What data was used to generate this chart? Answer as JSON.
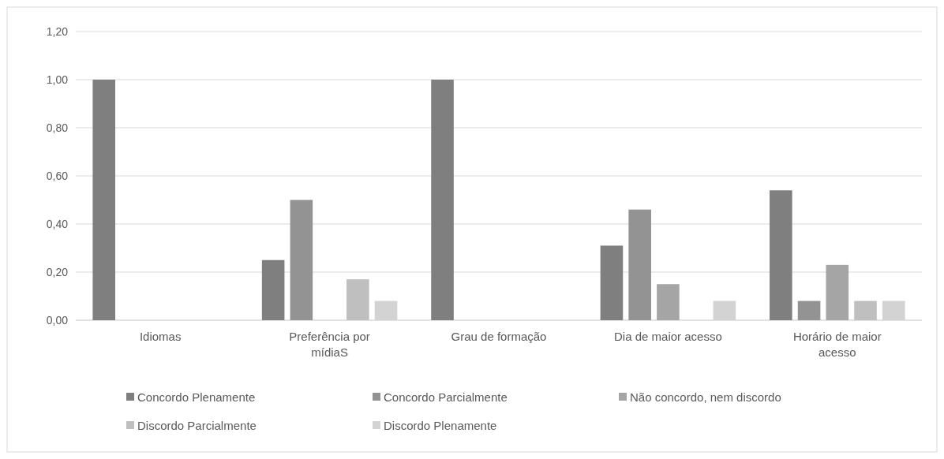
{
  "chart_data": {
    "type": "bar",
    "categories": [
      "Idiomas",
      "Preferência por mídiaS",
      "Grau de formação",
      "Dia de maior acesso",
      "Horário de maior acesso"
    ],
    "series": [
      {
        "name": "Concordo Plenamente",
        "color": "#7f7f7f",
        "values": [
          1.0,
          0.25,
          1.0,
          0.31,
          0.54
        ]
      },
      {
        "name": "Concordo Parcialmente",
        "color": "#939393",
        "values": [
          0,
          0.5,
          0,
          0.46,
          0.08
        ]
      },
      {
        "name": "Não concordo, nem discordo",
        "color": "#a5a5a5",
        "values": [
          0,
          0,
          0,
          0.15,
          0.23
        ]
      },
      {
        "name": "Discordo Parcialmente",
        "color": "#bfbfbf",
        "values": [
          0,
          0.17,
          0,
          0,
          0.08
        ]
      },
      {
        "name": "Discordo Plenamente",
        "color": "#d3d3d3",
        "values": [
          0,
          0.08,
          0,
          0.08,
          0.08
        ]
      }
    ],
    "ylim": [
      0,
      1.2
    ],
    "yticks": [
      {
        "value": 0,
        "label": "0,00"
      },
      {
        "value": 0.2,
        "label": "0,20"
      },
      {
        "value": 0.4,
        "label": "0,40"
      },
      {
        "value": 0.6,
        "label": "0,60"
      },
      {
        "value": 0.8,
        "label": "0,80"
      },
      {
        "value": 1.0,
        "label": "1,00"
      },
      {
        "value": 1.2,
        "label": "1,20"
      }
    ],
    "grid": "y",
    "legend": "bottom"
  }
}
